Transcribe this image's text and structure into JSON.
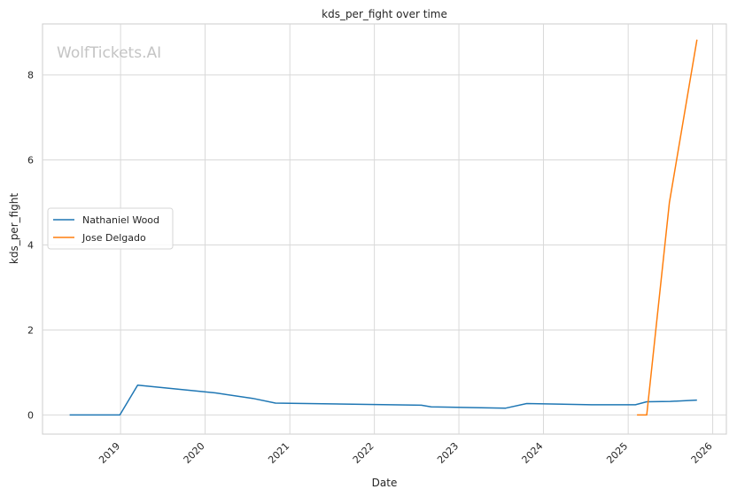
{
  "chart_data": {
    "type": "line",
    "title": "kds_per_fight over time",
    "xlabel": "Date",
    "ylabel": "kds_per_fight",
    "watermark": "WolfTickets.AI",
    "x_ticks": [
      "2019",
      "2020",
      "2021",
      "2022",
      "2023",
      "2024",
      "2025",
      "2026"
    ],
    "y_ticks": [
      "0",
      "2",
      "4",
      "6",
      "8"
    ],
    "xlim": [
      "2018-01-29",
      "2026-03-01"
    ],
    "ylim": [
      -0.45,
      9.2
    ],
    "grid": true,
    "legend_position": "center-left",
    "series": [
      {
        "name": "Nathaniel Wood",
        "color": "#1f77b4",
        "points": [
          [
            "2018-05-26",
            0.0
          ],
          [
            "2018-12-29",
            0.0
          ],
          [
            "2019-03-16",
            0.7
          ],
          [
            "2020-02-15",
            0.52
          ],
          [
            "2020-07-25",
            0.39
          ],
          [
            "2020-10-31",
            0.28
          ],
          [
            "2022-07-23",
            0.23
          ],
          [
            "2022-09-03",
            0.19
          ],
          [
            "2023-07-22",
            0.16
          ],
          [
            "2023-10-21",
            0.27
          ],
          [
            "2024-07-27",
            0.24
          ],
          [
            "2025-02-01",
            0.24
          ],
          [
            "2025-03-22",
            0.31
          ],
          [
            "2025-07-01",
            0.32
          ],
          [
            "2025-10-25",
            0.35
          ]
        ]
      },
      {
        "name": "Jose Delgado",
        "color": "#ff7f0e",
        "points": [
          [
            "2025-02-08",
            0.0
          ],
          [
            "2025-03-22",
            0.0
          ],
          [
            "2025-06-28",
            5.0
          ],
          [
            "2025-10-25",
            8.83
          ]
        ]
      }
    ]
  }
}
